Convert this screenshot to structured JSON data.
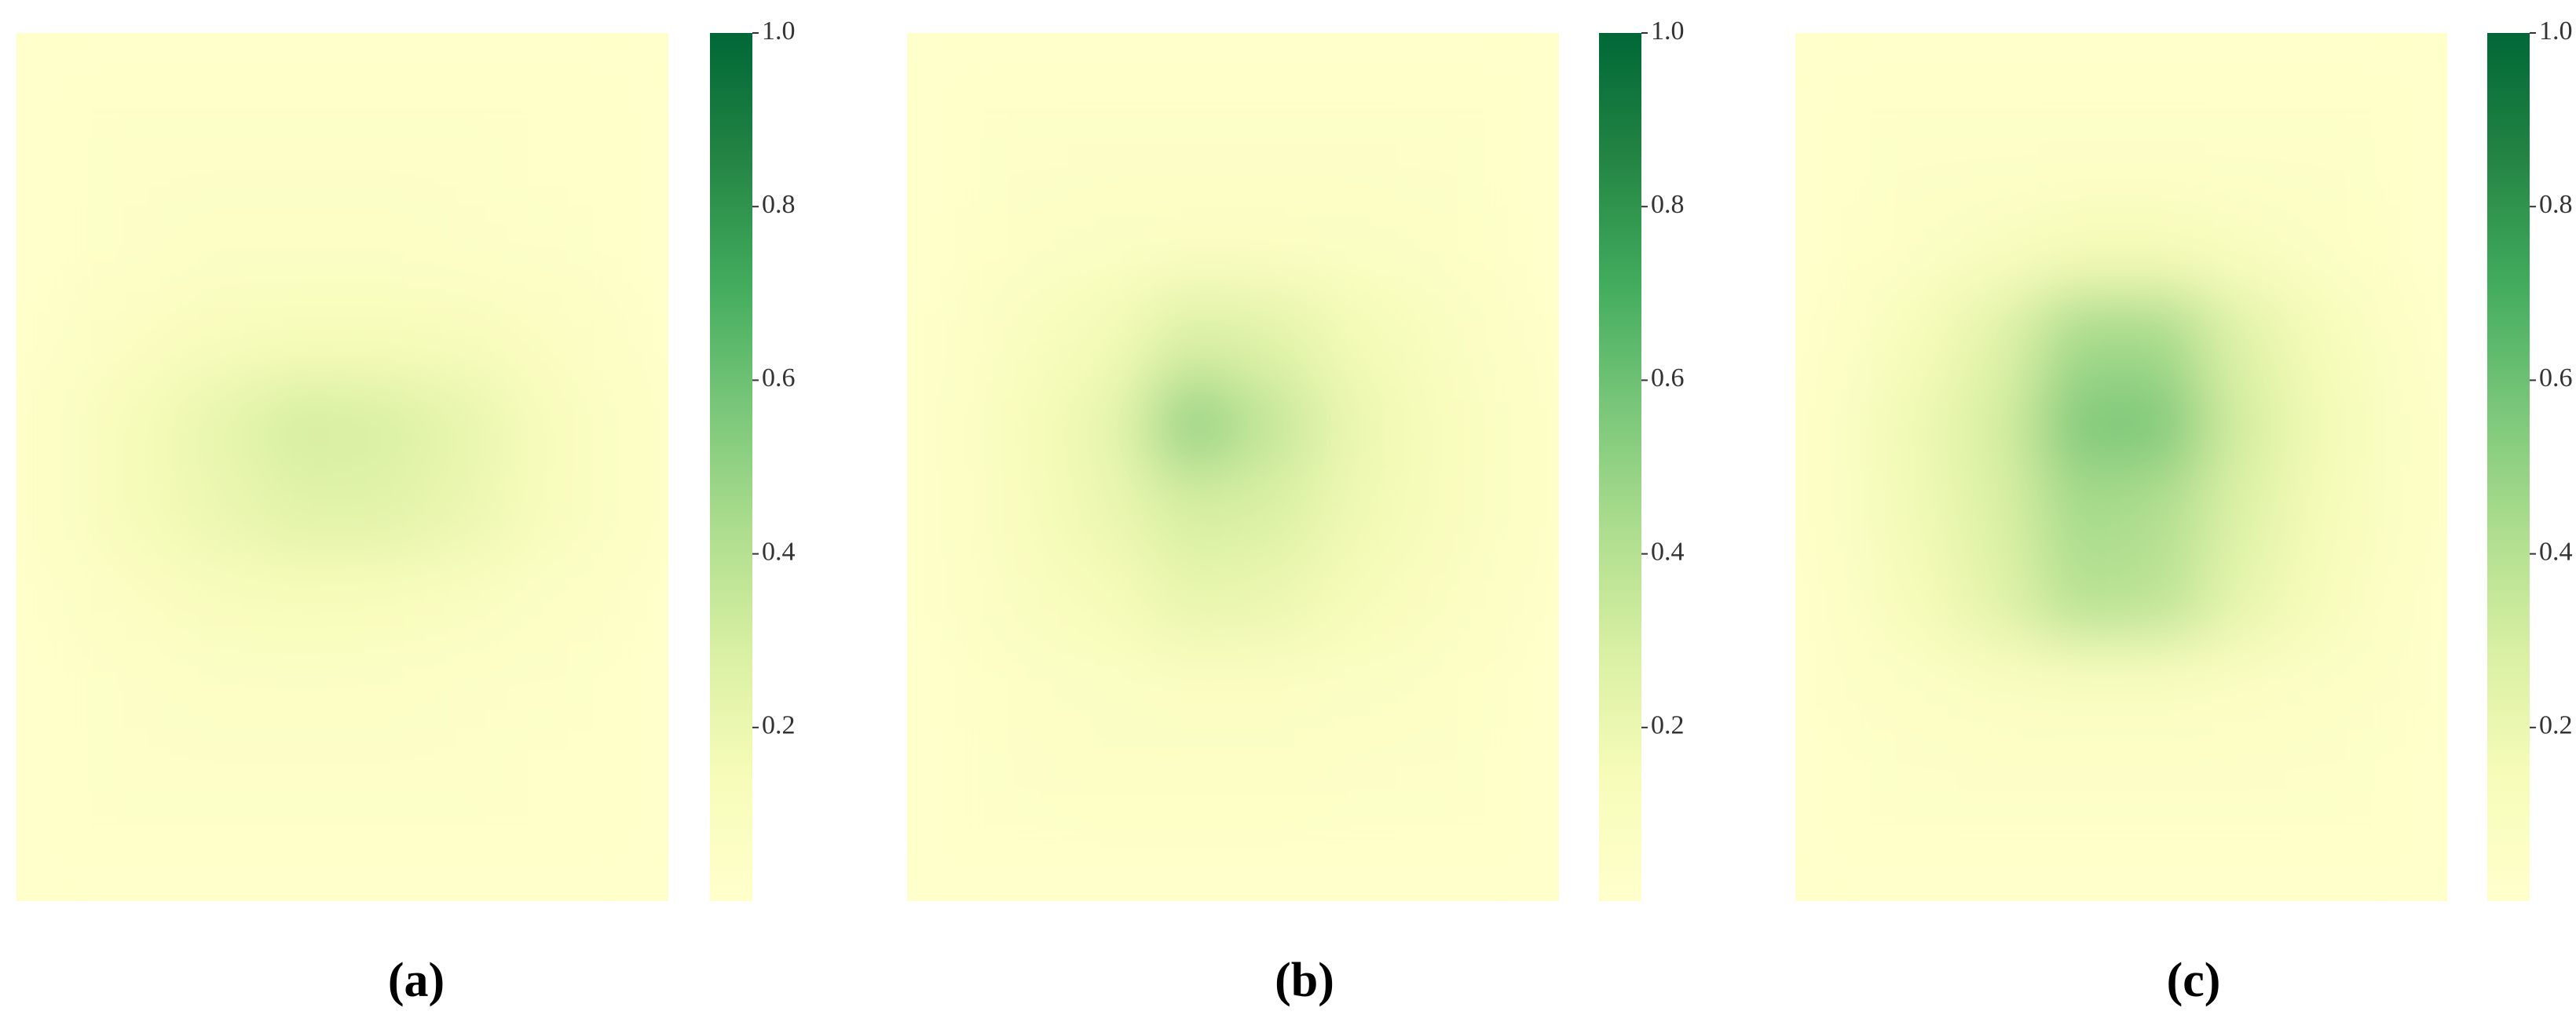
{
  "chart_data": [
    {
      "type": "heatmap",
      "caption": "(a)",
      "colors": [
        "#ffffcc",
        "#f7fcb9",
        "#d9f0a3",
        "#addd8e",
        "#78c679",
        "#41ab5d",
        "#238443",
        "#006837"
      ],
      "clim": [
        0,
        1
      ],
      "cticks": [
        0.2,
        0.4,
        0.6,
        0.8,
        {
          "value": 1,
          "label": "1.0"
        }
      ],
      "values": [
        [
          0.02,
          0.02,
          0.02,
          0.02,
          0.02,
          0.02,
          0.02,
          0.02
        ],
        [
          0.02,
          0.03,
          0.03,
          0.03,
          0.03,
          0.03,
          0.02,
          0.02
        ],
        [
          0.02,
          0.04,
          0.05,
          0.05,
          0.05,
          0.04,
          0.03,
          0.02
        ],
        [
          0.03,
          0.08,
          0.12,
          0.14,
          0.14,
          0.12,
          0.08,
          0.04
        ],
        [
          0.05,
          0.15,
          0.22,
          0.3,
          0.28,
          0.22,
          0.12,
          0.05
        ],
        [
          0.05,
          0.15,
          0.2,
          0.25,
          0.25,
          0.2,
          0.12,
          0.05
        ],
        [
          0.03,
          0.08,
          0.12,
          0.14,
          0.13,
          0.1,
          0.06,
          0.03
        ],
        [
          0.02,
          0.04,
          0.05,
          0.05,
          0.05,
          0.04,
          0.03,
          0.02
        ],
        [
          0.02,
          0.03,
          0.03,
          0.03,
          0.03,
          0.03,
          0.02,
          0.02
        ],
        [
          0.02,
          0.02,
          0.02,
          0.02,
          0.02,
          0.02,
          0.02,
          0.02
        ]
      ]
    },
    {
      "type": "heatmap",
      "caption": "(b)",
      "colors": [
        "#ffffcc",
        "#f7fcb9",
        "#d9f0a3",
        "#addd8e",
        "#78c679",
        "#41ab5d",
        "#238443",
        "#006837"
      ],
      "clim": [
        0,
        1
      ],
      "cticks": [
        0.2,
        0.4,
        0.6,
        0.8,
        {
          "value": 1,
          "label": "1.0"
        }
      ],
      "values": [
        [
          0.02,
          0.02,
          0.02,
          0.02,
          0.02,
          0.02,
          0.02,
          0.02
        ],
        [
          0.02,
          0.03,
          0.04,
          0.04,
          0.04,
          0.04,
          0.03,
          0.02
        ],
        [
          0.02,
          0.05,
          0.07,
          0.08,
          0.08,
          0.07,
          0.05,
          0.02
        ],
        [
          0.03,
          0.1,
          0.16,
          0.28,
          0.25,
          0.16,
          0.1,
          0.04
        ],
        [
          0.04,
          0.14,
          0.22,
          0.5,
          0.35,
          0.2,
          0.13,
          0.05
        ],
        [
          0.04,
          0.13,
          0.2,
          0.3,
          0.28,
          0.18,
          0.12,
          0.05
        ],
        [
          0.03,
          0.1,
          0.15,
          0.22,
          0.2,
          0.15,
          0.09,
          0.04
        ],
        [
          0.02,
          0.05,
          0.07,
          0.08,
          0.08,
          0.07,
          0.05,
          0.02
        ],
        [
          0.02,
          0.04,
          0.05,
          0.05,
          0.05,
          0.04,
          0.03,
          0.02
        ],
        [
          0.02,
          0.02,
          0.02,
          0.02,
          0.02,
          0.02,
          0.02,
          0.02
        ]
      ]
    },
    {
      "type": "heatmap",
      "caption": "(c)",
      "colors": [
        "#ffffcc",
        "#f7fcb9",
        "#d9f0a3",
        "#addd8e",
        "#78c679",
        "#41ab5d",
        "#238443",
        "#006837"
      ],
      "clim": [
        0,
        1
      ],
      "cticks": [
        0.2,
        0.4,
        0.6,
        0.8,
        {
          "value": 1,
          "label": "1.0"
        }
      ],
      "values": [
        [
          0.02,
          0.02,
          0.02,
          0.02,
          0.02,
          0.02,
          0.02,
          0.02
        ],
        [
          0.02,
          0.03,
          0.03,
          0.04,
          0.04,
          0.03,
          0.03,
          0.02
        ],
        [
          0.02,
          0.06,
          0.1,
          0.15,
          0.15,
          0.1,
          0.06,
          0.02
        ],
        [
          0.04,
          0.14,
          0.25,
          0.45,
          0.45,
          0.25,
          0.14,
          0.04
        ],
        [
          0.05,
          0.18,
          0.3,
          0.55,
          0.55,
          0.3,
          0.16,
          0.05
        ],
        [
          0.05,
          0.17,
          0.28,
          0.45,
          0.42,
          0.26,
          0.15,
          0.05
        ],
        [
          0.04,
          0.15,
          0.25,
          0.4,
          0.38,
          0.22,
          0.13,
          0.04
        ],
        [
          0.03,
          0.06,
          0.09,
          0.1,
          0.1,
          0.08,
          0.05,
          0.03
        ],
        [
          0.02,
          0.03,
          0.04,
          0.04,
          0.04,
          0.04,
          0.03,
          0.02
        ],
        [
          0.02,
          0.02,
          0.02,
          0.02,
          0.02,
          0.02,
          0.02,
          0.02
        ]
      ]
    }
  ]
}
